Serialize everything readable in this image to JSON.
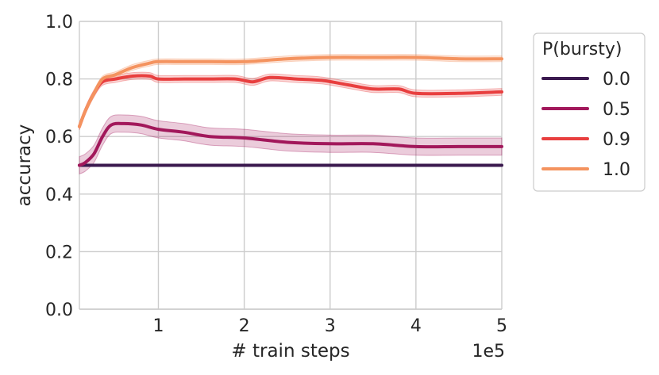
{
  "chart_data": {
    "type": "line",
    "title": "",
    "xlabel": "# train steps",
    "ylabel": "accuracy",
    "x_offset_label": "1e5",
    "xlim": [
      0.08,
      5
    ],
    "ylim": [
      0,
      1
    ],
    "xticks": [
      1,
      2,
      3,
      4,
      5
    ],
    "xtick_labels": [
      "1",
      "2",
      "3",
      "4",
      "5"
    ],
    "yticks": [
      0,
      0.2,
      0.4,
      0.6,
      0.8,
      1.0
    ],
    "ytick_labels": [
      "0.0",
      "0.2",
      "0.4",
      "0.6",
      "0.8",
      "1.0"
    ],
    "grid": true,
    "legend": {
      "title": "P(bursty)",
      "placement": "outside-right"
    },
    "series": [
      {
        "name": "0.0",
        "color": "#3b1a4f",
        "band_width": 0.004,
        "x": [
          0.08,
          0.3,
          0.5,
          0.7,
          1.0,
          1.5,
          2.0,
          2.5,
          3.0,
          3.5,
          4.0,
          4.5,
          5.0
        ],
        "y": [
          0.5,
          0.5,
          0.5,
          0.5,
          0.5,
          0.5,
          0.5,
          0.5,
          0.5,
          0.5,
          0.5,
          0.5,
          0.5
        ]
      },
      {
        "name": "0.5",
        "color": "#a2185b",
        "band_width": 0.03,
        "x": [
          0.08,
          0.15,
          0.25,
          0.35,
          0.45,
          0.6,
          0.8,
          1.0,
          1.3,
          1.6,
          2.0,
          2.5,
          3.0,
          3.5,
          4.0,
          4.5,
          5.0
        ],
        "y": [
          0.5,
          0.51,
          0.54,
          0.6,
          0.64,
          0.645,
          0.64,
          0.625,
          0.615,
          0.6,
          0.595,
          0.58,
          0.575,
          0.575,
          0.565,
          0.565,
          0.565
        ]
      },
      {
        "name": "0.9",
        "color": "#e83f3f",
        "band_width": 0.012,
        "x": [
          0.08,
          0.15,
          0.25,
          0.35,
          0.5,
          0.7,
          0.9,
          1.0,
          1.3,
          1.6,
          1.9,
          2.1,
          2.3,
          2.6,
          2.9,
          3.2,
          3.5,
          3.8,
          4.0,
          4.5,
          5.0
        ],
        "y": [
          0.635,
          0.69,
          0.75,
          0.79,
          0.8,
          0.81,
          0.81,
          0.8,
          0.8,
          0.8,
          0.8,
          0.79,
          0.805,
          0.8,
          0.795,
          0.78,
          0.765,
          0.765,
          0.75,
          0.75,
          0.755
        ]
      },
      {
        "name": "1.0",
        "color": "#f4935f",
        "band_width": 0.01,
        "x": [
          0.08,
          0.15,
          0.25,
          0.35,
          0.5,
          0.7,
          0.9,
          1.0,
          1.3,
          1.6,
          2.0,
          2.5,
          3.0,
          3.5,
          4.0,
          4.5,
          5.0
        ],
        "y": [
          0.635,
          0.69,
          0.75,
          0.8,
          0.815,
          0.84,
          0.855,
          0.86,
          0.86,
          0.86,
          0.86,
          0.87,
          0.875,
          0.875,
          0.875,
          0.87,
          0.87
        ]
      }
    ]
  }
}
